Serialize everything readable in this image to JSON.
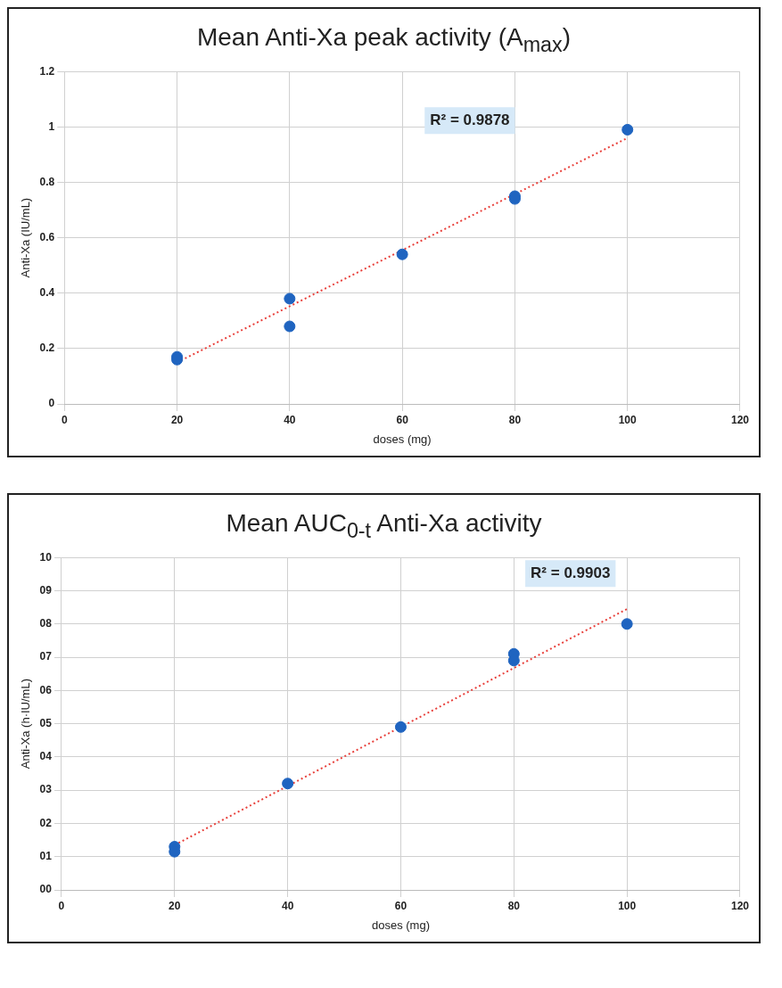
{
  "chart_data": [
    {
      "type": "scatter",
      "title": "Mean Anti-Xa peak activity (A$_{max}$)",
      "xlabel": "doses (mg)",
      "ylabel": "Anti-Xa (IU/mL)",
      "annotations": [
        "R² = 0.9878"
      ],
      "xlim": [
        0,
        120
      ],
      "xticks": [
        0,
        20,
        40,
        60,
        80,
        100,
        120
      ],
      "ylim": [
        0,
        1.2
      ],
      "yticks": [
        0,
        0.2,
        0.4,
        0.6,
        0.8,
        1,
        1.2
      ],
      "grid": true,
      "marker": "circle",
      "series": [
        {
          "type": "scatter",
          "color": "#1f64c0",
          "x": [
            20,
            20,
            40,
            40,
            60,
            80,
            80,
            100
          ],
          "values": [
            0.17,
            0.16,
            0.38,
            0.28,
            0.54,
            0.75,
            0.74,
            0.99
          ]
        },
        {
          "type": "line",
          "color": "#e8413c",
          "line_style": "dotted",
          "marker": "none",
          "x": [
            20,
            100
          ],
          "values": [
            0.15,
            0.96
          ]
        }
      ]
    },
    {
      "type": "scatter",
      "title": "Mean AUC$_{0-t}$ Anti-Xa activity",
      "xlabel": "doses (mg)",
      "ylabel": "Anti-Xa (h·IU/mL)",
      "annotations": [
        "R² = 0.9903"
      ],
      "xlim": [
        0,
        120
      ],
      "xticks": [
        0,
        20,
        40,
        60,
        80,
        100,
        120
      ],
      "ylim": [
        0,
        10
      ],
      "yticks": [
        {
          "value": 0,
          "label": "00"
        },
        {
          "value": 1,
          "label": "01"
        },
        {
          "value": 2,
          "label": "02"
        },
        {
          "value": 3,
          "label": "03"
        },
        {
          "value": 4,
          "label": "04"
        },
        {
          "value": 5,
          "label": "05"
        },
        {
          "value": 6,
          "label": "06"
        },
        {
          "value": 7,
          "label": "07"
        },
        {
          "value": 8,
          "label": "08"
        },
        {
          "value": 9,
          "label": "09"
        },
        {
          "value": 10,
          "label": "10"
        }
      ],
      "grid": true,
      "marker": "circle",
      "series": [
        {
          "type": "scatter",
          "color": "#1f64c0",
          "x": [
            20,
            20,
            40,
            60,
            80,
            80,
            100
          ],
          "values": [
            1.3,
            1.15,
            3.2,
            4.9,
            7.1,
            6.9,
            8.0
          ]
        },
        {
          "type": "line",
          "color": "#e8413c",
          "line_style": "dotted",
          "marker": "none",
          "x": [
            20,
            100
          ],
          "values": [
            1.35,
            8.45
          ]
        }
      ]
    }
  ]
}
